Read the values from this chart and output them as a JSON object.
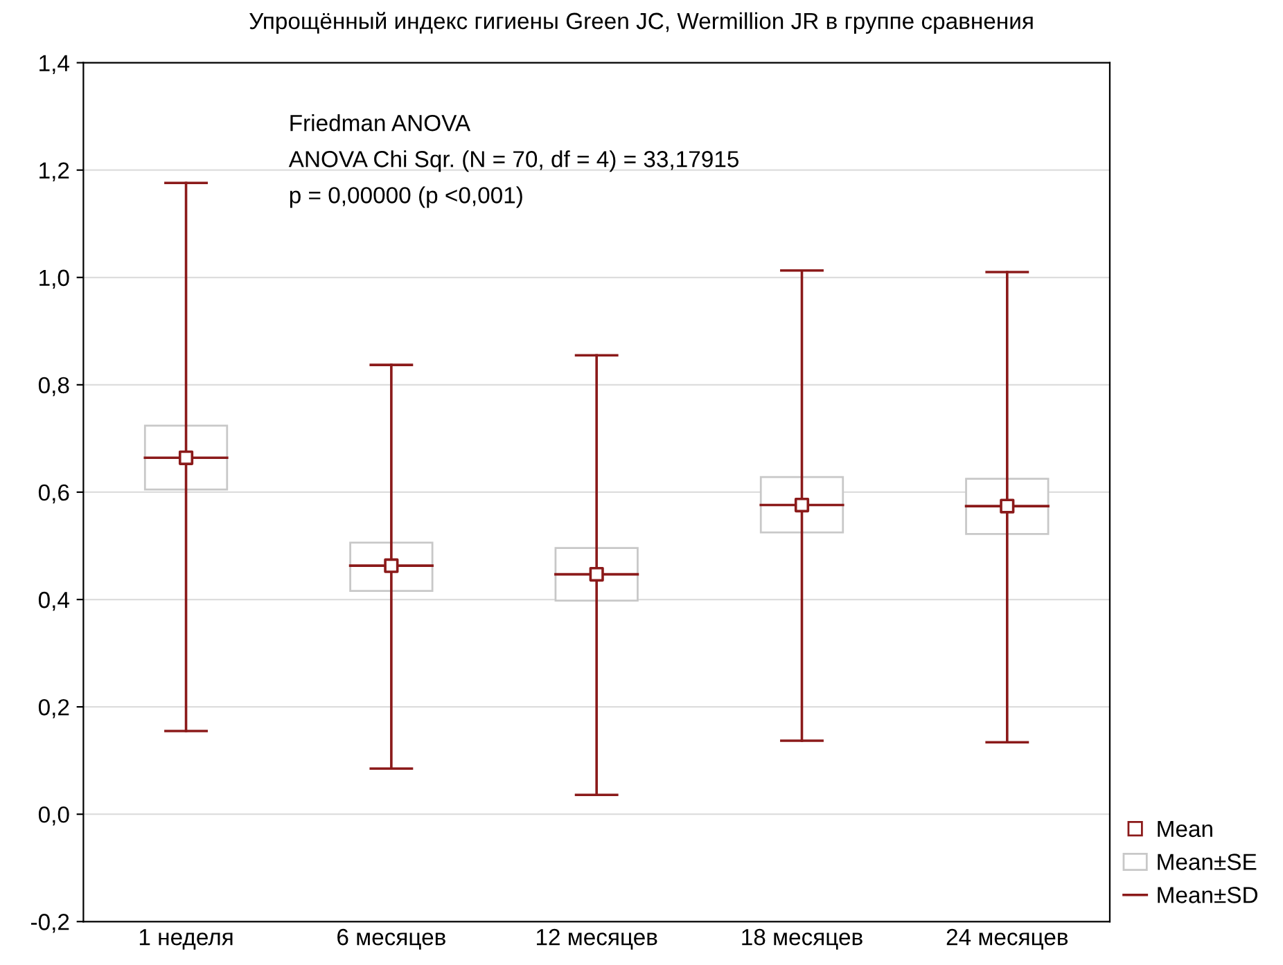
{
  "chart_data": {
    "type": "box",
    "title": "Упрощённый индекс гигиены Green JC, Wermillion JR в группе сравнения",
    "categories": [
      "1 неделя",
      "6 месяцев",
      "12 месяцев",
      "18 месяцев",
      "24 месяцев"
    ],
    "series": [
      {
        "name": "Mean",
        "type": "scatter",
        "marker": "square",
        "color": "#8b1a1a",
        "values": [
          0.664,
          0.463,
          0.447,
          0.576,
          0.574
        ]
      },
      {
        "name": "Mean±SE",
        "type": "bar",
        "color": "#c8c8c8",
        "base": [
          0.605,
          0.416,
          0.398,
          0.525,
          0.522
        ],
        "values": [
          0.119,
          0.09,
          0.098,
          0.103,
          0.103
        ]
      },
      {
        "name": "Mean±SD",
        "color": "#8b1a1a",
        "boxes": [
          {
            "low": 0.155,
            "q1": 0.664,
            "median": 0.664,
            "q3": 0.664,
            "high": 1.176
          },
          {
            "low": 0.085,
            "q1": 0.463,
            "median": 0.463,
            "q3": 0.463,
            "high": 0.837
          },
          {
            "low": 0.036,
            "q1": 0.447,
            "median": 0.447,
            "q3": 0.447,
            "high": 0.855
          },
          {
            "low": 0.137,
            "q1": 0.576,
            "median": 0.576,
            "q3": 0.576,
            "high": 1.013
          },
          {
            "low": 0.134,
            "q1": 0.574,
            "median": 0.574,
            "q3": 0.574,
            "high": 1.01
          }
        ]
      }
    ],
    "ylim": [
      -0.2,
      1.4
    ],
    "yticks": [
      {
        "value": -0.2,
        "label": "-0,2"
      },
      {
        "value": 0.0,
        "label": "0,0"
      },
      {
        "value": 0.2,
        "label": "0,2"
      },
      {
        "value": 0.4,
        "label": "0,4"
      },
      {
        "value": 0.6,
        "label": "0,6"
      },
      {
        "value": 0.8,
        "label": "0,8"
      },
      {
        "value": 1.0,
        "label": "1,0"
      },
      {
        "value": 1.2,
        "label": "1,2"
      },
      {
        "value": 1.4,
        "label": "1,4"
      }
    ],
    "grid": "y",
    "legend": "bottom right",
    "annotations": [
      "Friedman ANOVA",
      "ANOVA Chi Sqr. (N = 70, df = 4) = 33,17915",
      "p = 0,00000 (p <0,001)"
    ]
  }
}
